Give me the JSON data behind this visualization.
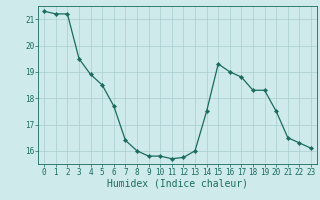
{
  "x": [
    0,
    1,
    2,
    3,
    4,
    5,
    6,
    7,
    8,
    9,
    10,
    11,
    12,
    13,
    14,
    15,
    16,
    17,
    18,
    19,
    20,
    21,
    22,
    23
  ],
  "y": [
    21.3,
    21.2,
    21.2,
    19.5,
    18.9,
    18.5,
    17.7,
    16.4,
    16.0,
    15.8,
    15.8,
    15.7,
    15.75,
    16.0,
    17.5,
    19.3,
    19.0,
    18.8,
    18.3,
    18.3,
    17.5,
    16.5,
    16.3,
    16.1
  ],
  "line_color": "#1a6b5e",
  "marker": "D",
  "marker_size": 2.2,
  "bg_color": "#ceeaea",
  "grid_color": "#aacece",
  "xlabel": "Humidex (Indice chaleur)",
  "xlim": [
    -0.5,
    23.5
  ],
  "ylim": [
    15.5,
    21.5
  ],
  "yticks": [
    16,
    17,
    18,
    19,
    20,
    21
  ],
  "xticks": [
    0,
    1,
    2,
    3,
    4,
    5,
    6,
    7,
    8,
    9,
    10,
    11,
    12,
    13,
    14,
    15,
    16,
    17,
    18,
    19,
    20,
    21,
    22,
    23
  ],
  "tick_fontsize": 5.5,
  "xlabel_fontsize": 7,
  "axis_color": "#1a6b5e",
  "tick_color": "#1a6b5e"
}
